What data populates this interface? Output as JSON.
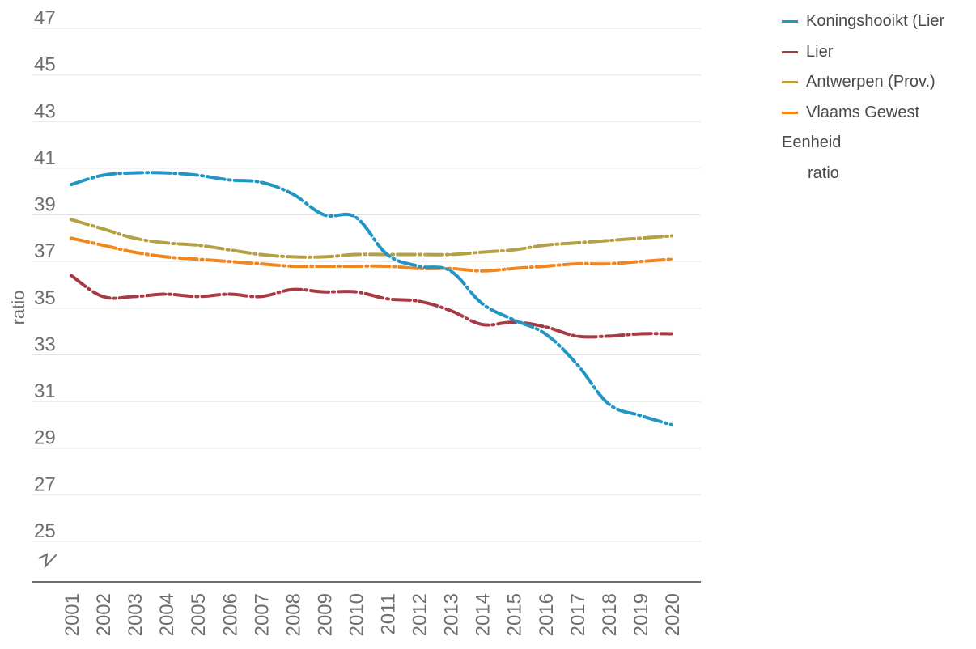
{
  "chart_data": {
    "type": "line",
    "ylabel": "ratio",
    "xlabel": "",
    "ylim": [
      23,
      47
    ],
    "yticks": [
      "47",
      "45",
      "43",
      "41",
      "39",
      "37",
      "35",
      "33",
      "31",
      "29",
      "27",
      "25"
    ],
    "axis_break": true,
    "grid": true,
    "legend_position": "top-right",
    "x": [
      "2001",
      "2002",
      "2003",
      "2004",
      "2005",
      "2006",
      "2007",
      "2008",
      "2009",
      "2010",
      "2011",
      "2012",
      "2013",
      "2014",
      "2015",
      "2016",
      "2017",
      "2018",
      "2019",
      "2020"
    ],
    "series": [
      {
        "name": "Koningshooikt (Lier",
        "color": "#2196c4",
        "values": [
          40.3,
          40.7,
          40.8,
          40.8,
          40.7,
          40.5,
          40.4,
          39.9,
          39.0,
          38.9,
          37.3,
          36.8,
          36.6,
          35.2,
          34.5,
          33.9,
          32.6,
          30.9,
          30.4,
          30.0
        ]
      },
      {
        "name": "Lier",
        "color": "#a83a46",
        "values": [
          36.4,
          35.5,
          35.5,
          35.6,
          35.5,
          35.6,
          35.5,
          35.8,
          35.7,
          35.7,
          35.4,
          35.3,
          34.9,
          34.3,
          34.4,
          34.2,
          33.8,
          33.8,
          33.9,
          33.9
        ]
      },
      {
        "name": "Antwerpen (Prov.)",
        "color": "#b5a046",
        "values": [
          38.8,
          38.4,
          38.0,
          37.8,
          37.7,
          37.5,
          37.3,
          37.2,
          37.2,
          37.3,
          37.3,
          37.3,
          37.3,
          37.4,
          37.5,
          37.7,
          37.8,
          37.9,
          38.0,
          38.1
        ]
      },
      {
        "name": "Vlaams Gewest",
        "color": "#f0861d",
        "values": [
          38.0,
          37.7,
          37.4,
          37.2,
          37.1,
          37.0,
          36.9,
          36.8,
          36.8,
          36.8,
          36.8,
          36.7,
          36.7,
          36.6,
          36.7,
          36.8,
          36.9,
          36.9,
          37.0,
          37.1
        ]
      }
    ],
    "unit": {
      "title": "Eenheid",
      "value": "ratio"
    }
  }
}
